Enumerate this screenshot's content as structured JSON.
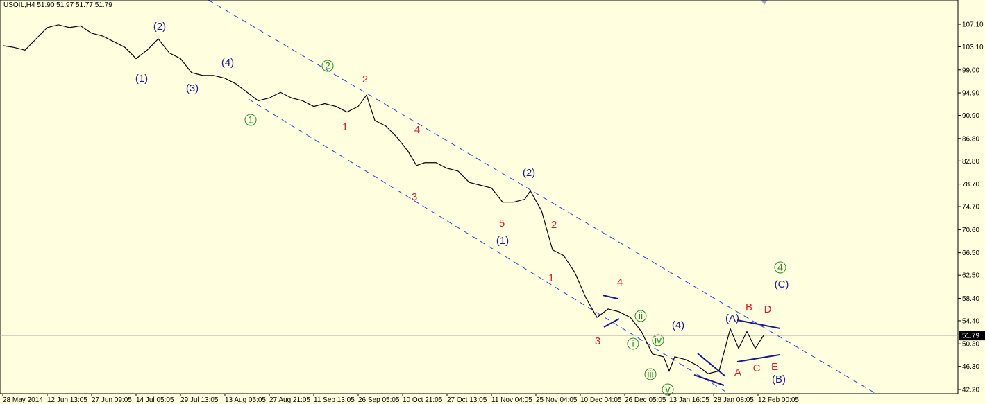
{
  "chart_data": {
    "type": "line",
    "title": "USOIL,H4  51.90 51.97 51.77 51.79",
    "color": "#000000",
    "last_price": 51.79,
    "x": [
      1,
      5,
      9,
      13,
      17,
      21,
      25,
      29,
      33,
      37,
      41,
      45,
      49,
      53,
      57,
      61,
      65,
      69,
      73,
      77,
      81,
      85,
      89,
      93,
      97,
      101,
      105,
      109,
      113,
      117,
      121,
      125,
      129,
      132,
      135,
      139,
      143,
      147,
      150,
      153,
      157,
      161,
      165,
      169,
      173,
      177,
      181,
      185,
      189,
      191,
      195,
      199,
      203,
      207,
      211,
      215,
      219,
      223,
      227,
      231,
      235,
      239,
      241,
      243,
      247,
      251,
      255,
      259,
      263,
      266,
      269,
      272,
      275
    ],
    "values": [
      103.3,
      103.0,
      102.5,
      104.5,
      106.5,
      107.0,
      106.5,
      106.8,
      105.5,
      105.0,
      104.0,
      103.0,
      101.0,
      102.5,
      104.5,
      102.0,
      101.0,
      98.5,
      98.0,
      98.0,
      97.5,
      96.5,
      95.0,
      93.5,
      94.0,
      95.0,
      94.0,
      93.5,
      92.5,
      93.0,
      92.5,
      91.5,
      92.5,
      94.5,
      90.0,
      89.0,
      87.0,
      84.5,
      82.0,
      82.5,
      82.5,
      81.5,
      81.0,
      79.0,
      78.5,
      78.0,
      75.5,
      75.5,
      76.0,
      77.5,
      74.0,
      67.0,
      66.0,
      63.0,
      58.5,
      55.0,
      56.5,
      56.0,
      55.0,
      52.5,
      48.5,
      48.0,
      45.5,
      48.0,
      47.5,
      46.5,
      45.0,
      45.5,
      53.0,
      49.5,
      52.5,
      49.5,
      51.79
    ],
    "xlim": [
      0,
      345
    ],
    "xticks": [
      {
        "value": 1,
        "label": "28 May 2014"
      },
      {
        "value": 17,
        "label": "12 Jun 13:05"
      },
      {
        "value": 33,
        "label": "27 Jun 09:05"
      },
      {
        "value": 49,
        "label": "14 Jul 05:05"
      },
      {
        "value": 65,
        "label": "29 Jul 13:05"
      },
      {
        "value": 81,
        "label": "13 Aug 05:05"
      },
      {
        "value": 97,
        "label": "27 Aug 21:05"
      },
      {
        "value": 113,
        "label": "11 Sep 13:05"
      },
      {
        "value": 129,
        "label": "26 Sep 05:05"
      },
      {
        "value": 145,
        "label": "10 Oct 21:05"
      },
      {
        "value": 161,
        "label": "27 Oct 13:05"
      },
      {
        "value": 177,
        "label": "11 Nov 04:05"
      },
      {
        "value": 193,
        "label": "25 Nov 04:05"
      },
      {
        "value": 209,
        "label": "10 Dec 04:05"
      },
      {
        "value": 225,
        "label": "26 Dec 05:05"
      },
      {
        "value": 241,
        "label": "13 Jan 16:05"
      },
      {
        "value": 257,
        "label": "28 Jan 08:05"
      },
      {
        "value": 273,
        "label": "12 Feb 00:05"
      }
    ],
    "ylim": [
      41.46,
      111.41
    ],
    "yticks": [
      {
        "value": 107.1,
        "label": "107.10"
      },
      {
        "value": 103.1,
        "label": "103.10"
      },
      {
        "value": 99,
        "label": "99.00"
      },
      {
        "value": 94.9,
        "label": "94.90"
      },
      {
        "value": 90.9,
        "label": "90.90"
      },
      {
        "value": 86.8,
        "label": "86.80"
      },
      {
        "value": 82.8,
        "label": "82.80"
      },
      {
        "value": 78.7,
        "label": "78.70"
      },
      {
        "value": 74.7,
        "label": "74.70"
      },
      {
        "value": 70.6,
        "label": "70.60"
      },
      {
        "value": 66.5,
        "label": "66.50"
      },
      {
        "value": 62.5,
        "label": "62.50"
      },
      {
        "value": 58.4,
        "label": "58.40"
      },
      {
        "value": 54.4,
        "label": "54.40"
      },
      {
        "value": 50.3,
        "label": "50.30"
      },
      {
        "value": 46.3,
        "label": "46.30"
      },
      {
        "value": 42.2,
        "label": "42.20"
      }
    ],
    "grid": false,
    "annotations": [
      "(2)",
      "(1)",
      "(4)",
      "(3)",
      "2",
      "1",
      "2",
      "1",
      "4",
      "3",
      "5",
      "(2)",
      "(1)",
      "2",
      "1",
      "4",
      "3",
      "ii",
      "i",
      "iv",
      "iii",
      "v",
      "(4)",
      "(A)",
      "B",
      "D",
      "A",
      "C",
      "E",
      "(B)",
      "4",
      "(C)"
    ]
  }
}
